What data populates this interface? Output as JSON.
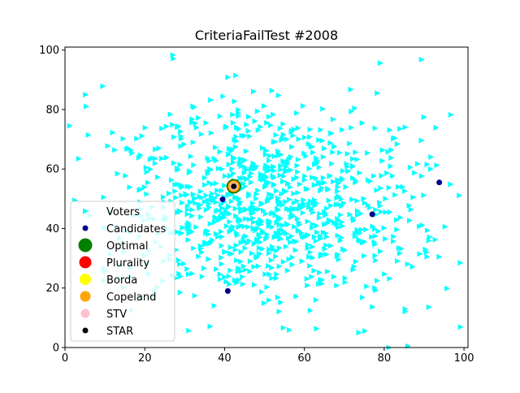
{
  "chart_data": {
    "type": "scatter",
    "title": "CriteriaFailTest #2008",
    "xlabel": "",
    "ylabel": "",
    "xlim": [
      0,
      101
    ],
    "ylim": [
      0,
      101
    ],
    "x_ticks": [
      "0",
      "20",
      "40",
      "60",
      "80",
      "100"
    ],
    "y_ticks": [
      "0",
      "20",
      "40",
      "60",
      "80",
      "100"
    ],
    "grid": false,
    "legend_position": "lower-left",
    "colors": {
      "voters": "#00ffff",
      "candidates": "#00008b",
      "optimal": "#008000",
      "plurality": "#ff0000",
      "borda": "#ffff00",
      "copeland": "#ffa500",
      "stv": "#ffc0cb",
      "star": "#000000"
    },
    "legend": [
      {
        "label": "Voters",
        "key": "voters"
      },
      {
        "label": "Candidates",
        "key": "candidates"
      },
      {
        "label": "Optimal",
        "key": "optimal"
      },
      {
        "label": "Plurality",
        "key": "plurality"
      },
      {
        "label": "Borda",
        "key": "borda"
      },
      {
        "label": "Copeland",
        "key": "copeland"
      },
      {
        "label": "STV",
        "key": "stv"
      },
      {
        "label": "STAR",
        "key": "star"
      }
    ],
    "voters_distribution": {
      "count": 1000,
      "center": [
        50.5,
        49.5
      ],
      "spread": [
        19,
        17
      ]
    },
    "candidates": [
      {
        "x": 39.5,
        "y": 49.8
      },
      {
        "x": 42.3,
        "y": 54.2
      },
      {
        "x": 40.8,
        "y": 19.0
      },
      {
        "x": 77.0,
        "y": 44.8
      },
      {
        "x": 93.8,
        "y": 55.5
      }
    ],
    "winners": {
      "optimal": {
        "x": 42.3,
        "y": 54.2
      },
      "plurality": {
        "x": 42.3,
        "y": 54.2
      },
      "borda": {
        "x": 42.3,
        "y": 54.2
      },
      "copeland": {
        "x": 42.3,
        "y": 54.2
      },
      "stv": {
        "x": 42.3,
        "y": 54.2
      },
      "star": {
        "x": 42.3,
        "y": 54.2
      }
    }
  }
}
